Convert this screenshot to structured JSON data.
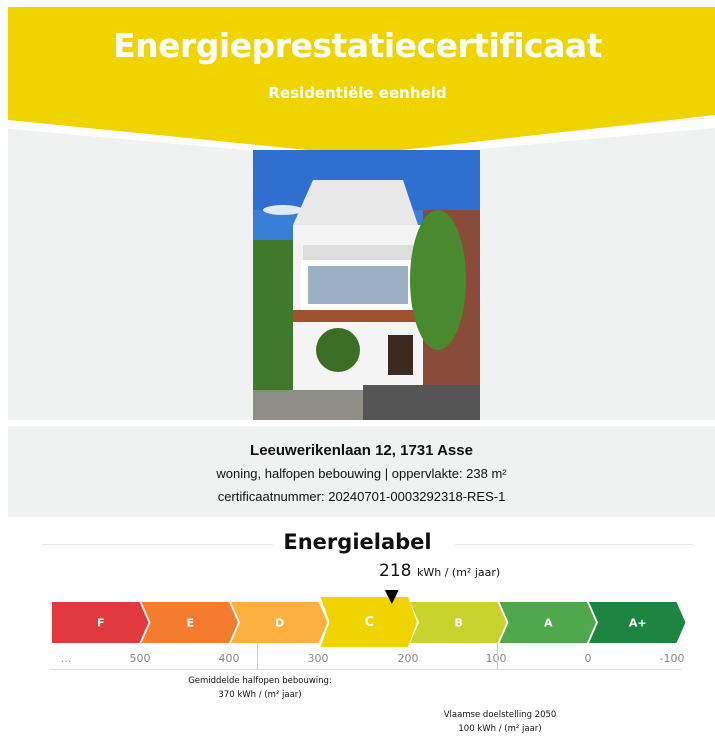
{
  "header": {
    "title": "Energieprestatiecertificaat",
    "subtitle": "Residentiële eenheid",
    "color": "#f0d400"
  },
  "property": {
    "address": "Leeuwerikenlaan 12, 1731 Asse",
    "description": "woning, halfopen bebouwing | oppervlakte: 238 m²",
    "certificate": "certificaatnummer: 20240701-0003292318-RES-1"
  },
  "energy": {
    "heading": "Energielabel",
    "value": "218",
    "unit": "kWh / (m² jaar)",
    "current_label": "C",
    "labels": [
      {
        "label": "F",
        "color": "#e03a3e"
      },
      {
        "label": "E",
        "color": "#f47c2e"
      },
      {
        "label": "D",
        "color": "#fbb040"
      },
      {
        "label": "C",
        "color": "#f0d400"
      },
      {
        "label": "B",
        "color": "#c9d32e"
      },
      {
        "label": "A",
        "color": "#4fa84a"
      },
      {
        "label": "A+",
        "color": "#1e8540"
      }
    ],
    "scale": [
      "...",
      "500",
      "400",
      "300",
      "200",
      "100",
      "0",
      "-100"
    ],
    "average_note": {
      "line1": "Gemiddelde halfopen bebouwing:",
      "line2": "370 kWh / (m² jaar)"
    },
    "target_note": {
      "line1": "Vlaamse doelstelling 2050",
      "line2": "100 kWh / (m² jaar)"
    }
  }
}
